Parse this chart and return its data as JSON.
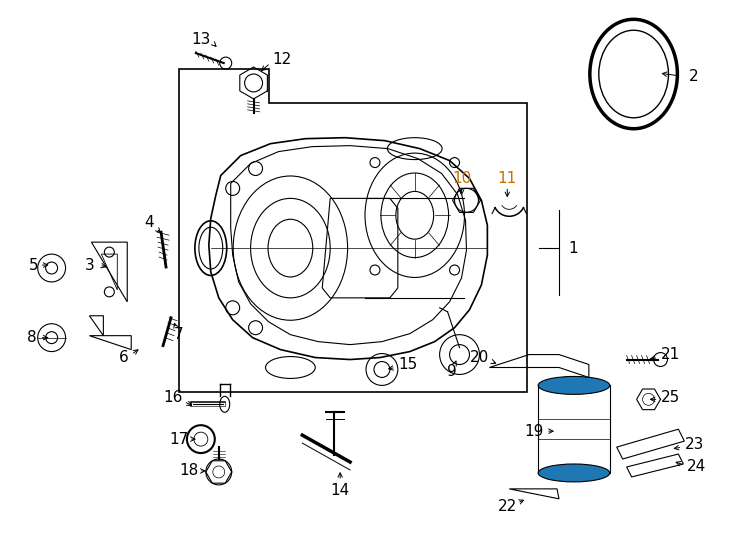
{
  "bg_color": "#ffffff",
  "line_color": "#000000",
  "label_color_default": "#000000",
  "label_color_highlight": "#c87000",
  "fig_width": 7.34,
  "fig_height": 5.4,
  "dpi": 100
}
